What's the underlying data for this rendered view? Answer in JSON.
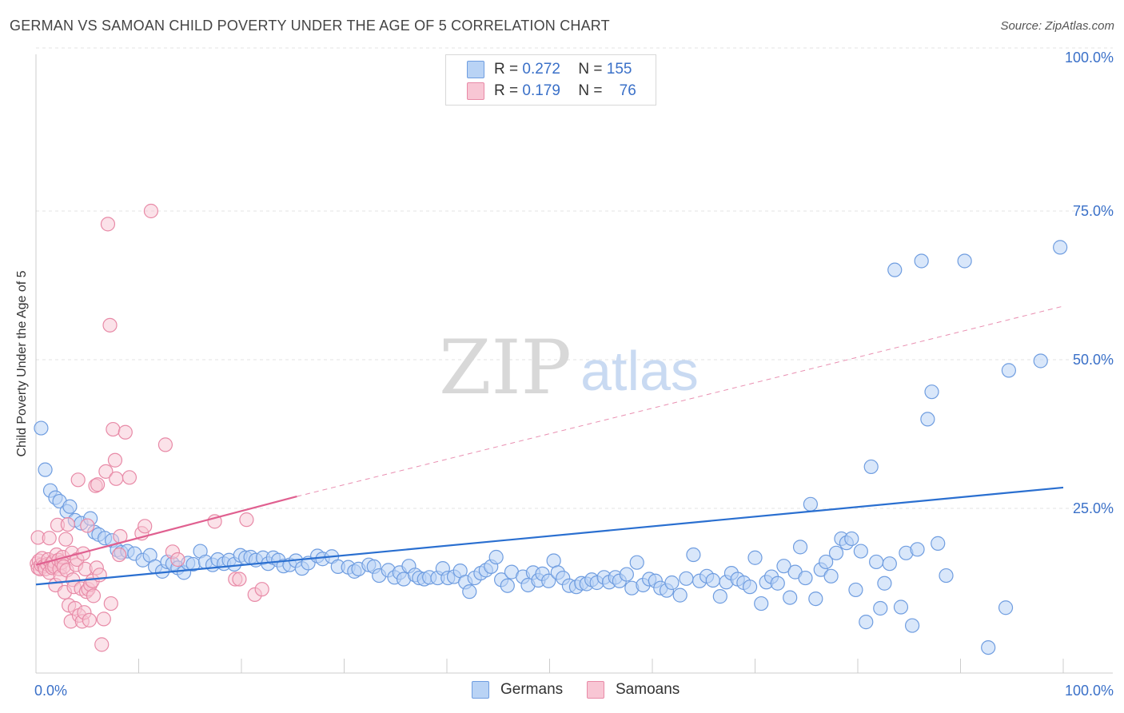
{
  "title": "GERMAN VS SAMOAN CHILD POVERTY UNDER THE AGE OF 5 CORRELATION CHART",
  "source": "Source: ZipAtlas.com",
  "watermark": {
    "part1": "ZIP",
    "part2": "atlas"
  },
  "legend": {
    "r_label": "R =",
    "n_label": "N =",
    "rows": [
      {
        "name": "Germans",
        "r": "0.272",
        "n": "155"
      },
      {
        "name": "Samoans",
        "r": "0.179",
        "n": "76"
      }
    ]
  },
  "colors": {
    "blue_fill": "#b9d3f5",
    "blue_stroke": "#6f9de0",
    "blue_line": "#2a6fd0",
    "pink_fill": "#f8c6d4",
    "pink_stroke": "#e88aa7",
    "pink_line": "#e06090",
    "axis_text": "#3a70c8",
    "grid": "#e3e3e3"
  },
  "chart_data": {
    "type": "scatter",
    "title": "GERMAN VS SAMOAN CHILD POVERTY UNDER THE AGE OF 5 CORRELATION CHART",
    "xlabel": "",
    "ylabel": "Child Poverty Under the Age of 5",
    "xlim": [
      0,
      100
    ],
    "ylim": [
      0,
      100
    ],
    "x_tick_labels": [
      {
        "value": 0,
        "label": "0.0%"
      },
      {
        "value": 100,
        "label": "100.0%"
      }
    ],
    "y_tick_labels": [
      {
        "value": 25,
        "label": "25.0%"
      },
      {
        "value": 50,
        "label": "50.0%"
      },
      {
        "value": 75,
        "label": "75.0%"
      },
      {
        "value": 100,
        "label": "100.0%"
      }
    ],
    "x_minor_ticks": [
      0,
      10,
      20,
      30,
      40,
      50,
      60,
      70,
      80,
      90,
      100
    ],
    "series": [
      {
        "name": "Germans",
        "trend": {
          "x0": 0,
          "y0": 12.2,
          "x1": 100,
          "y1": 28.5
        },
        "points": [
          [
            0.5,
            38.5
          ],
          [
            0.9,
            31.5
          ],
          [
            1.4,
            28
          ],
          [
            1.9,
            26.8
          ],
          [
            2.3,
            26.2
          ],
          [
            3,
            24.5
          ],
          [
            3.3,
            25.3
          ],
          [
            3.8,
            23
          ],
          [
            4.4,
            22.5
          ],
          [
            5.3,
            23.3
          ],
          [
            5.7,
            21
          ],
          [
            6.1,
            20.6
          ],
          [
            6.7,
            20
          ],
          [
            7.4,
            19.6
          ],
          [
            7.9,
            18
          ],
          [
            8.3,
            17.6
          ],
          [
            8.9,
            17.8
          ],
          [
            9.6,
            17.4
          ],
          [
            10.4,
            16.3
          ],
          [
            11.1,
            17.1
          ],
          [
            11.6,
            15.2
          ],
          [
            12.3,
            14.4
          ],
          [
            12.8,
            16
          ],
          [
            13.3,
            15.7
          ],
          [
            13.8,
            15
          ],
          [
            14.4,
            14.2
          ],
          [
            14.8,
            15.8
          ],
          [
            15.3,
            15.6
          ],
          [
            16,
            17.8
          ],
          [
            16.5,
            16
          ],
          [
            17.2,
            15.5
          ],
          [
            17.7,
            16.4
          ],
          [
            18.3,
            15.7
          ],
          [
            18.8,
            16.3
          ],
          [
            19.3,
            15.6
          ],
          [
            19.9,
            17.1
          ],
          [
            20.4,
            16.7
          ],
          [
            20.9,
            16.8
          ],
          [
            21.4,
            16.3
          ],
          [
            22.1,
            16.7
          ],
          [
            22.6,
            15.7
          ],
          [
            23.1,
            16.7
          ],
          [
            23.6,
            16.3
          ],
          [
            24.1,
            15.3
          ],
          [
            24.7,
            15.5
          ],
          [
            25.3,
            16.2
          ],
          [
            25.9,
            14.9
          ],
          [
            26.5,
            15.8
          ],
          [
            27.4,
            17
          ],
          [
            27.9,
            16.5
          ],
          [
            28.8,
            16.9
          ],
          [
            29.4,
            15.2
          ],
          [
            30.4,
            15.1
          ],
          [
            31,
            14.4
          ],
          [
            31.4,
            14.8
          ],
          [
            32.4,
            15.5
          ],
          [
            32.9,
            15.2
          ],
          [
            33.4,
            13.7
          ],
          [
            34.3,
            14.6
          ],
          [
            34.9,
            13.4
          ],
          [
            35.4,
            14.2
          ],
          [
            35.8,
            13.1
          ],
          [
            36.3,
            15.3
          ],
          [
            36.9,
            13.8
          ],
          [
            37.3,
            13.3
          ],
          [
            37.8,
            13.1
          ],
          [
            38.3,
            13.4
          ],
          [
            39.1,
            13.3
          ],
          [
            39.6,
            14.9
          ],
          [
            40.1,
            13.3
          ],
          [
            40.7,
            13.5
          ],
          [
            41.3,
            14.5
          ],
          [
            41.8,
            12.6
          ],
          [
            42.2,
            11
          ],
          [
            42.7,
            13.3
          ],
          [
            43.3,
            14.1
          ],
          [
            43.8,
            14.6
          ],
          [
            44.3,
            15.2
          ],
          [
            44.8,
            16.8
          ],
          [
            45.3,
            13
          ],
          [
            45.9,
            12
          ],
          [
            46.3,
            14.3
          ],
          [
            47.4,
            13.5
          ],
          [
            47.9,
            12.1
          ],
          [
            48.4,
            14.2
          ],
          [
            48.9,
            12.9
          ],
          [
            49.3,
            14
          ],
          [
            49.9,
            12.8
          ],
          [
            50.4,
            16.2
          ],
          [
            50.8,
            14.2
          ],
          [
            51.3,
            13.3
          ],
          [
            51.9,
            12
          ],
          [
            52.6,
            11.8
          ],
          [
            53.1,
            12.4
          ],
          [
            53.6,
            12.3
          ],
          [
            54.1,
            13
          ],
          [
            54.6,
            12.5
          ],
          [
            55.3,
            13.4
          ],
          [
            55.8,
            12.6
          ],
          [
            56.4,
            13.4
          ],
          [
            56.8,
            12.8
          ],
          [
            57.5,
            13.9
          ],
          [
            58,
            11.6
          ],
          [
            58.5,
            15.9
          ],
          [
            59.1,
            12.1
          ],
          [
            59.7,
            13.1
          ],
          [
            60.3,
            12.8
          ],
          [
            60.8,
            11.6
          ],
          [
            61.4,
            11.2
          ],
          [
            61.9,
            12.5
          ],
          [
            62.7,
            10.4
          ],
          [
            63.3,
            13.2
          ],
          [
            64,
            17.2
          ],
          [
            64.6,
            12.8
          ],
          [
            65.3,
            13.6
          ],
          [
            65.9,
            12.9
          ],
          [
            66.6,
            10.2
          ],
          [
            67.2,
            12.6
          ],
          [
            67.7,
            14.1
          ],
          [
            68.3,
            13.1
          ],
          [
            68.9,
            12.5
          ],
          [
            69.5,
            11.8
          ],
          [
            70,
            16.7
          ],
          [
            70.6,
            9
          ],
          [
            71.1,
            12.6
          ],
          [
            71.6,
            13.5
          ],
          [
            72.2,
            12.4
          ],
          [
            72.8,
            15.3
          ],
          [
            73.4,
            10
          ],
          [
            73.9,
            14.3
          ],
          [
            74.4,
            18.5
          ],
          [
            74.9,
            13.3
          ],
          [
            75.4,
            25.7
          ],
          [
            75.9,
            9.8
          ],
          [
            76.4,
            14.7
          ],
          [
            76.9,
            16
          ],
          [
            77.4,
            13.6
          ],
          [
            77.9,
            17.5
          ],
          [
            78.4,
            19.9
          ],
          [
            78.9,
            19.2
          ],
          [
            79.4,
            19.9
          ],
          [
            79.8,
            11.3
          ],
          [
            80.3,
            17.8
          ],
          [
            80.8,
            5.9
          ],
          [
            81.3,
            32
          ],
          [
            81.8,
            16
          ],
          [
            82.2,
            8.2
          ],
          [
            82.6,
            12.4
          ],
          [
            83.1,
            15.7
          ],
          [
            83.6,
            65.1
          ],
          [
            84.2,
            8.4
          ],
          [
            84.7,
            17.5
          ],
          [
            85.3,
            5.3
          ],
          [
            85.8,
            18.1
          ],
          [
            86.2,
            66.6
          ],
          [
            86.8,
            40
          ],
          [
            87.2,
            44.6
          ],
          [
            87.8,
            19.1
          ],
          [
            88.6,
            13.7
          ],
          [
            90.4,
            66.6
          ],
          [
            92.7,
            1.6
          ],
          [
            94.4,
            8.3
          ],
          [
            94.7,
            48.2
          ],
          [
            97.8,
            49.8
          ],
          [
            99.7,
            68.9
          ]
        ]
      },
      {
        "name": "Samoans",
        "trend": {
          "x0": 0,
          "y0": 15.5,
          "x1": 25.4,
          "y1": 27.0,
          "dashed_x1": 100,
          "dashed_y1": 59.0
        },
        "points": [
          [
            0.1,
            15.7
          ],
          [
            0.2,
            20.1
          ],
          [
            0.2,
            15
          ],
          [
            0.3,
            16.2
          ],
          [
            0.4,
            14.8
          ],
          [
            0.5,
            15.5
          ],
          [
            0.6,
            16.6
          ],
          [
            0.8,
            15.3
          ],
          [
            0.9,
            14.8
          ],
          [
            1.1,
            15.6
          ],
          [
            1.2,
            16.4
          ],
          [
            1.3,
            14.2
          ],
          [
            1.3,
            20
          ],
          [
            1.5,
            15.7
          ],
          [
            1.6,
            15
          ],
          [
            1.7,
            16.1
          ],
          [
            1.8,
            15.2
          ],
          [
            1.9,
            12.1
          ],
          [
            2,
            17.2
          ],
          [
            2.1,
            22.2
          ],
          [
            2.2,
            16.3
          ],
          [
            2.3,
            14.8
          ],
          [
            2.4,
            13.6
          ],
          [
            2.5,
            15.9
          ],
          [
            2.6,
            16.8
          ],
          [
            2.7,
            15.2
          ],
          [
            2.8,
            10.9
          ],
          [
            2.9,
            19.8
          ],
          [
            3,
            14.6
          ],
          [
            3.1,
            22.3
          ],
          [
            3.2,
            8.7
          ],
          [
            3.4,
            6
          ],
          [
            3.5,
            17.5
          ],
          [
            3.6,
            13
          ],
          [
            3.7,
            11.8
          ],
          [
            3.8,
            8.2
          ],
          [
            3.9,
            15.5
          ],
          [
            4,
            16.4
          ],
          [
            4.1,
            29.8
          ],
          [
            4.2,
            7
          ],
          [
            4.4,
            11.5
          ],
          [
            4.5,
            6
          ],
          [
            4.6,
            17.4
          ],
          [
            4.7,
            7.5
          ],
          [
            4.8,
            14.8
          ],
          [
            4.9,
            11
          ],
          [
            5,
            22.1
          ],
          [
            5.1,
            11.4
          ],
          [
            5.2,
            6.2
          ],
          [
            5.3,
            12.2
          ],
          [
            5.5,
            12.8
          ],
          [
            5.6,
            10.3
          ],
          [
            5.8,
            28.8
          ],
          [
            5.9,
            15
          ],
          [
            6,
            29
          ],
          [
            6.2,
            13.8
          ],
          [
            6.4,
            2.1
          ],
          [
            6.6,
            6.4
          ],
          [
            6.8,
            31.2
          ],
          [
            7,
            72.8
          ],
          [
            7.2,
            55.8
          ],
          [
            7.3,
            9
          ],
          [
            7.5,
            38.3
          ],
          [
            7.7,
            33.1
          ],
          [
            7.8,
            30
          ],
          [
            8.1,
            17.2
          ],
          [
            8.2,
            20.3
          ],
          [
            8.7,
            37.8
          ],
          [
            9.1,
            30.2
          ],
          [
            10.3,
            20.8
          ],
          [
            10.6,
            22
          ],
          [
            11.2,
            75
          ],
          [
            12.6,
            35.7
          ],
          [
            13.3,
            17.7
          ],
          [
            13.8,
            16.4
          ],
          [
            17.4,
            22.8
          ],
          [
            19.4,
            13.1
          ],
          [
            19.8,
            13.1
          ],
          [
            20.5,
            23.1
          ],
          [
            21.3,
            10.5
          ],
          [
            22,
            11.4
          ]
        ]
      }
    ]
  }
}
